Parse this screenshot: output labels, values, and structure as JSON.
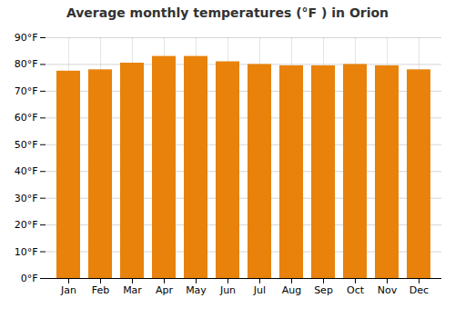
{
  "chart_data": {
    "type": "bar",
    "title": "Average monthly temperatures (°F ) in Orion",
    "categories": [
      "Jan",
      "Feb",
      "Mar",
      "Apr",
      "May",
      "Jun",
      "Jul",
      "Aug",
      "Sep",
      "Oct",
      "Nov",
      "Dec"
    ],
    "values": [
      77.5,
      78.0,
      80.5,
      83.0,
      83.0,
      81.0,
      80.0,
      79.5,
      79.5,
      80.0,
      79.5,
      78.0
    ],
    "color": "#E8820A",
    "ylim": [
      0,
      90
    ],
    "yticks": [
      {
        "value": 0,
        "label": "0°F"
      },
      {
        "value": 10,
        "label": "10°F"
      },
      {
        "value": 20,
        "label": "20°F"
      },
      {
        "value": 30,
        "label": "30°F"
      },
      {
        "value": 40,
        "label": "40°F"
      },
      {
        "value": 50,
        "label": "50°F"
      },
      {
        "value": 60,
        "label": "60°F"
      },
      {
        "value": 70,
        "label": "70°F"
      },
      {
        "value": 80,
        "label": "80°F"
      },
      {
        "value": 90,
        "label": "90°F"
      }
    ],
    "grid": true
  }
}
